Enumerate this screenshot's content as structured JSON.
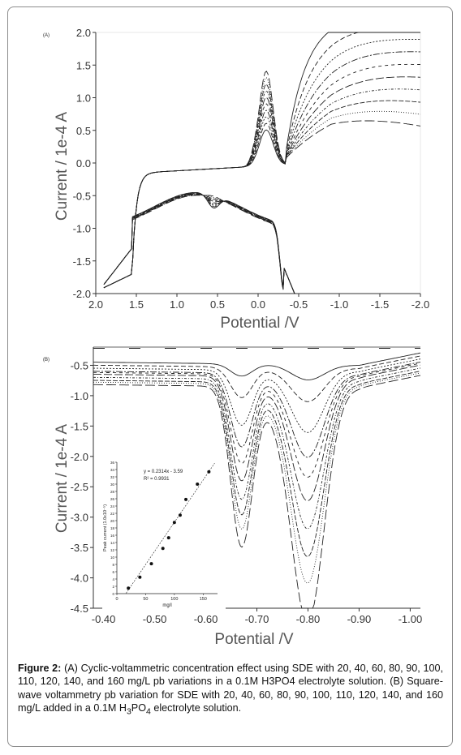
{
  "chart_data": [
    {
      "type": "line",
      "panel_label": "(A)",
      "xlabel": "Potential /V",
      "ylabel": "Current / 1e-4 A",
      "xlim": [
        2.0,
        -2.0
      ],
      "ylim": [
        -2.0,
        2.0
      ],
      "x_ticks": [
        "2.0",
        "1.5",
        "1.0",
        "0.5",
        "0.0",
        "-0.5",
        "-1.0",
        "-1.5",
        "-2.0"
      ],
      "x_tick_values": [
        2.0,
        1.5,
        1.0,
        0.5,
        0.0,
        -0.5,
        -1.0,
        -1.5,
        -2.0
      ],
      "y_ticks": [
        "2.0",
        "1.5",
        "1.0",
        "0.5",
        "0.0",
        "-0.5",
        "-1.0",
        "-1.5",
        "-2.0"
      ],
      "y_tick_values": [
        2.0,
        1.5,
        1.0,
        0.5,
        0.0,
        -0.5,
        -1.0,
        -1.5,
        -2.0
      ],
      "curve_count": 10,
      "forward_peak_base": 0.55,
      "forward_peak_step": 0.1,
      "reverse_peak_base": -0.2,
      "reverse_peak_step": 0.025
    },
    {
      "type": "line",
      "panel_label": "(B)",
      "xlabel": "Potential /V",
      "ylabel": "Current / 1e-4 A",
      "xlim": [
        -0.38,
        -1.02
      ],
      "ylim": [
        -4.5,
        -0.2
      ],
      "x_ticks": [
        "-0.40",
        "-0.50",
        "-0.60",
        "-0.70",
        "-0.80",
        "-0.90",
        "-1.00"
      ],
      "x_tick_values": [
        -0.4,
        -0.5,
        -0.6,
        -0.7,
        -0.8,
        -0.9,
        -1.0
      ],
      "y_ticks": [
        "-0.5",
        "-1.0",
        "-1.5",
        "-2.0",
        "-2.5",
        "-3.0",
        "-3.5",
        "-4.0",
        "-4.5"
      ],
      "y_tick_values": [
        -0.5,
        -1.0,
        -1.5,
        -2.0,
        -2.5,
        -3.0,
        -3.5,
        -4.0,
        -4.5
      ],
      "baseline_currents": [
        -0.45,
        -0.5,
        -0.55,
        -0.6,
        -0.62,
        -0.65,
        -0.7,
        -0.75,
        -0.78,
        -0.82
      ],
      "peak1_depth": [
        0.2,
        0.5,
        0.9,
        1.2,
        1.45,
        1.7,
        1.95,
        2.15,
        2.35,
        2.6
      ],
      "peak2_depth": [
        0.25,
        0.55,
        1.0,
        1.35,
        1.65,
        2.0,
        2.4,
        2.8,
        3.2,
        3.8
      ],
      "peak1_center_v": -0.67,
      "peak2_center_v": -0.8,
      "inset": {
        "type": "scatter",
        "xlabel": "mg/l",
        "ylabel": "Peak current (1.0x10⁻⁵)",
        "equation": "y = 0.2314x - 3.59",
        "r2": "R² = 0.9931",
        "xlim": [
          0,
          175
        ],
        "ylim": [
          0,
          36
        ],
        "x_ticks": [
          "0",
          "50",
          "100",
          "150"
        ],
        "x_tick_values": [
          0,
          50,
          100,
          150
        ],
        "y_ticks": [
          "0",
          "2",
          "4",
          "6",
          "8",
          "10",
          "12",
          "14",
          "16",
          "18",
          "20",
          "22",
          "24",
          "26",
          "28",
          "30",
          "32",
          "34",
          "36"
        ],
        "y_tick_values": [
          0,
          2,
          4,
          6,
          8,
          10,
          12,
          14,
          16,
          18,
          20,
          22,
          24,
          26,
          28,
          30,
          32,
          34,
          36
        ],
        "x": [
          20,
          40,
          60,
          80,
          90,
          100,
          110,
          120,
          140,
          160
        ],
        "y": [
          1.5,
          4.5,
          8.2,
          12.4,
          15.3,
          19.5,
          21.5,
          25.8,
          30.0,
          33.4
        ]
      }
    }
  ],
  "caption": {
    "label": "Figure 2:",
    "text_a": " (A) Cyclic-voltammetric concentration effect using SDE with 20, 40, 60, 80, 90, 100, 110, 120, 140, and 160 mg/L pb variations in a 0.1M H3PO4 electrolyte solution. (B) Square-wave voltammetry pb variation for SDE with 20, 40, 60, 80, 90, 100, 110, 120, 140, and 160 mg/L added in a 0.1M H",
    "sub1": "3",
    "text_b": "PO",
    "sub2": "4",
    "text_c": " electrolyte solution."
  }
}
